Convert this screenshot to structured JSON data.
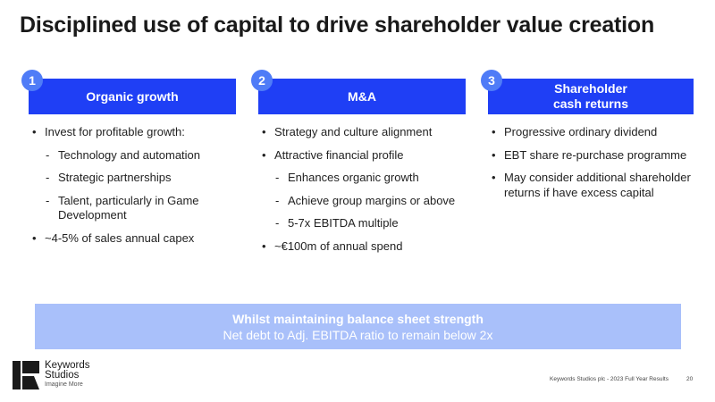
{
  "slide": {
    "title": "Disciplined use of capital to drive shareholder value creation"
  },
  "columns": [
    {
      "number": "1",
      "header_line1": "Organic growth",
      "header_line2": "",
      "items": [
        {
          "type": "bullet",
          "text": "Invest for profitable growth:"
        },
        {
          "type": "sub",
          "text": "Technology and automation"
        },
        {
          "type": "sub",
          "text": "Strategic partnerships"
        },
        {
          "type": "sub",
          "text": "Talent, particularly in Game Development"
        },
        {
          "type": "bullet",
          "text": "~4-5% of sales annual capex"
        }
      ]
    },
    {
      "number": "2",
      "header_line1": "M&A",
      "header_line2": "",
      "items": [
        {
          "type": "bullet",
          "text": "Strategy and culture alignment"
        },
        {
          "type": "bullet",
          "text": "Attractive financial profile"
        },
        {
          "type": "sub",
          "text": "Enhances organic growth"
        },
        {
          "type": "sub",
          "text": "Achieve group margins or above"
        },
        {
          "type": "sub",
          "text": "5-7x EBITDA multiple"
        },
        {
          "type": "bullet",
          "text": "~€100m of annual spend"
        }
      ]
    },
    {
      "number": "3",
      "header_line1": "Shareholder",
      "header_line2": "cash returns",
      "items": [
        {
          "type": "bullet",
          "text": "Progressive ordinary dividend"
        },
        {
          "type": "bullet",
          "text": "EBT share re-purchase programme"
        },
        {
          "type": "bullet",
          "text": "May consider additional shareholder returns if have excess capital"
        }
      ]
    }
  ],
  "banner": {
    "line1": "Whilst maintaining balance sheet strength",
    "line2": "Net debt to Adj. EBITDA ratio to remain below 2x"
  },
  "logo": {
    "name_line1": "Keywords",
    "name_line2": "Studios",
    "tagline": "Imagine More",
    "icon": "keywords-k-logo-icon"
  },
  "footer": {
    "text": "Keywords Studios plc - 2023 Full Year Results",
    "page": "20"
  },
  "colors": {
    "header_blue": "#1f3ff5",
    "number_badge": "#4f7cf7",
    "banner_bg": "#a9c0fa"
  }
}
